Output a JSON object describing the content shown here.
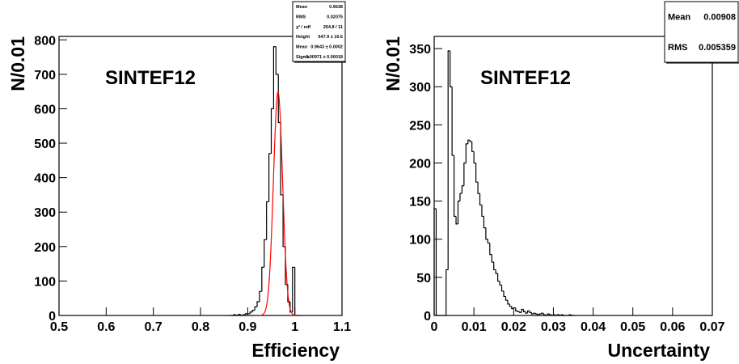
{
  "chart_data": [
    {
      "type": "histogram",
      "annotation": "SINTEF12",
      "xlabel": "Efficiency",
      "ylabel": "N/0.01",
      "color": "#000000",
      "bins": [
        0.86,
        0.865,
        0.87,
        0.875,
        0.88,
        0.885,
        0.89,
        0.895,
        0.9,
        0.905,
        0.91,
        0.915,
        0.92,
        0.925,
        0.93,
        0.935,
        0.94,
        0.945,
        0.95,
        0.955,
        0.96,
        0.965,
        0.97,
        0.975,
        0.98,
        0.985,
        0.99,
        0.995,
        1.0,
        1.005,
        1.01
      ],
      "values": [
        0,
        0,
        2,
        0,
        3,
        0,
        2,
        5,
        5,
        10,
        15,
        25,
        40,
        70,
        140,
        220,
        330,
        470,
        600,
        780,
        700,
        560,
        350,
        200,
        90,
        40,
        10,
        140,
        0,
        0
      ],
      "xlim": [
        0.5,
        1.1
      ],
      "ylim": [
        0,
        810
      ],
      "xticks": [
        0.5,
        0.6,
        0.7,
        0.8,
        0.9,
        1,
        1.1
      ],
      "yticks": [
        0,
        100,
        200,
        300,
        400,
        500,
        600,
        700,
        800
      ],
      "fit": {
        "color": "#ff0000",
        "height": 647.9,
        "mean": 0.9643,
        "sigma": 0.00971
      },
      "stats": [
        [
          "Mean",
          "0.9638"
        ],
        [
          "RMS",
          "0.02075"
        ],
        [
          "χ² / ndf",
          "264.8 / 11"
        ],
        [
          "Height",
          "647.9 ± 16.6"
        ],
        [
          "Mean",
          "0.9643 ± 0.0002"
        ],
        [
          "Sigma",
          "0.00971 ± 0.00018"
        ]
      ]
    },
    {
      "type": "histogram",
      "annotation": "SINTEF12",
      "xlabel": "Uncertainty",
      "ylabel": "N/0.01",
      "color": "#000000",
      "bins": [
        0,
        0.0005,
        0.001,
        0.0015,
        0.002,
        0.0025,
        0.003,
        0.0035,
        0.004,
        0.0045,
        0.005,
        0.0055,
        0.006,
        0.0065,
        0.007,
        0.0075,
        0.008,
        0.0085,
        0.009,
        0.0095,
        0.01,
        0.0105,
        0.011,
        0.0115,
        0.012,
        0.0125,
        0.013,
        0.0135,
        0.014,
        0.0145,
        0.015,
        0.0155,
        0.016,
        0.0165,
        0.017,
        0.0175,
        0.018,
        0.0185,
        0.019,
        0.0195,
        0.02,
        0.0205,
        0.021,
        0.0215,
        0.022,
        0.0225,
        0.023,
        0.0235,
        0.024,
        0.0245,
        0.025,
        0.0255,
        0.026,
        0.0265,
        0.027,
        0.0275,
        0.028,
        0.0285,
        0.029,
        0.0295,
        0.03,
        0.0305,
        0.031,
        0.0315,
        0.032,
        0.0325,
        0.033,
        0.0335,
        0.034,
        0.0345,
        0.035,
        0.0355
      ],
      "values": [
        140,
        0,
        0,
        0,
        0,
        0,
        60,
        347,
        300,
        210,
        130,
        120,
        150,
        160,
        170,
        200,
        225,
        230,
        228,
        215,
        200,
        175,
        160,
        145,
        130,
        115,
        100,
        95,
        80,
        70,
        60,
        55,
        45,
        40,
        32,
        25,
        20,
        15,
        12,
        9,
        10,
        6,
        5,
        4,
        8,
        5,
        3,
        6,
        4,
        2,
        3,
        2,
        1,
        2,
        3,
        1,
        0,
        2,
        1,
        0,
        1,
        0,
        1,
        0,
        1,
        0,
        0,
        0,
        1,
        0,
        0
      ],
      "xlim": [
        0,
        0.07
      ],
      "ylim": [
        0,
        366
      ],
      "xticks": [
        0,
        0.01,
        0.02,
        0.03,
        0.04,
        0.05,
        0.06,
        0.07
      ],
      "yticks": [
        0,
        50,
        100,
        150,
        200,
        250,
        300,
        350
      ],
      "stats": [
        [
          "Mean",
          "0.00908"
        ],
        [
          "RMS",
          "0.005359"
        ]
      ]
    }
  ]
}
